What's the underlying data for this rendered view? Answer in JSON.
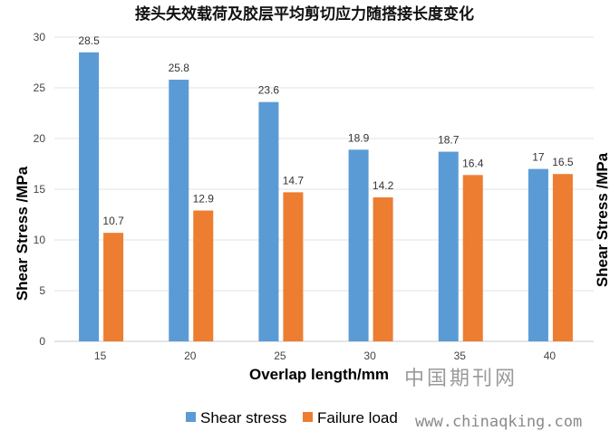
{
  "chart_data": {
    "type": "bar",
    "title": "接头失效载荷及胶层平均剪切应力随搭接长度变化",
    "xlabel": "Overlap length/mm",
    "ylabel": "Shear Stress /MPa",
    "ylabel_right": "Shear Stress /MPa",
    "categories": [
      "15",
      "20",
      "25",
      "30",
      "35",
      "40"
    ],
    "ylim": [
      0,
      30
    ],
    "yticks": [
      0,
      5,
      10,
      15,
      20,
      25,
      30
    ],
    "grid": true,
    "legend_position": "bottom",
    "series": [
      {
        "name": "Shear stress",
        "color": "#5b9bd5",
        "values": [
          28.5,
          25.8,
          23.6,
          18.9,
          18.7,
          17
        ],
        "labels": [
          "28.5",
          "25.8",
          "23.6",
          "18.9",
          "18.7",
          "17"
        ]
      },
      {
        "name": "Failure load",
        "color": "#ed7d31",
        "values": [
          10.7,
          12.9,
          14.7,
          14.2,
          16.4,
          16.5
        ],
        "labels": [
          "10.7",
          "12.9",
          "14.7",
          "14.2",
          "16.4",
          "16.5"
        ]
      }
    ]
  },
  "watermark": {
    "line1": "中国期刊网",
    "line2": "www.chinaqking.com"
  }
}
